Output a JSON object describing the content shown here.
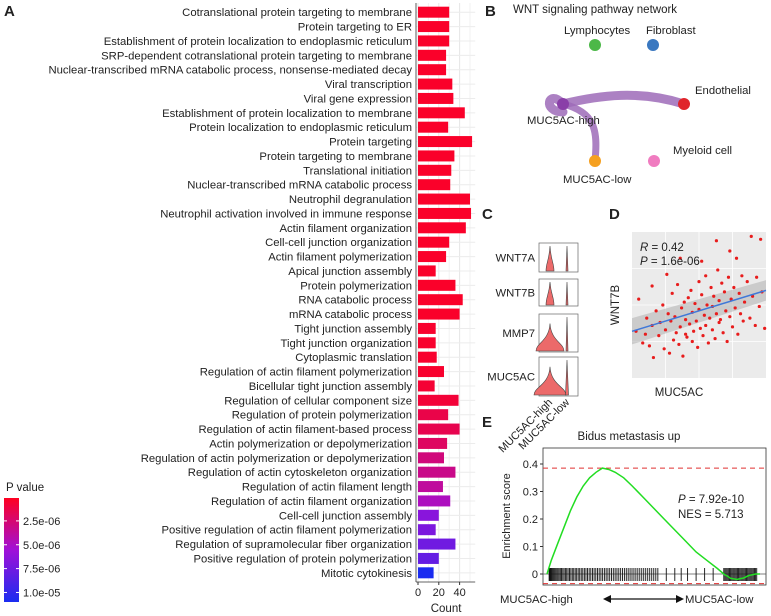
{
  "panels": {
    "a": {
      "letter": "A",
      "legend_title": "P value",
      "legend_ticks": [
        "2.5e-06",
        "5.0e-06",
        "7.5e-06",
        "1.0e-05"
      ],
      "legend_tick_values": [
        2.5e-06,
        5e-06,
        7.5e-06,
        1e-05
      ],
      "legend_range": [
        1e-07,
        1.1e-05
      ],
      "colors": {
        "low": "#ff0020",
        "mid": "#a010d8",
        "high": "#1a2cf0"
      }
    },
    "b": {
      "letter": "B",
      "title": "WNT signaling pathway network",
      "nodes": [
        {
          "label": "Lymphocytes",
          "color": "#4cb848"
        },
        {
          "label": "Fibroblast",
          "color": "#3a78c0"
        },
        {
          "label": "Endothelial",
          "color": "#e0252b"
        },
        {
          "label": "MUC5AC-high",
          "color": "#8a3fa8"
        },
        {
          "label": "Myeloid cell",
          "color": "#f07cc0"
        },
        {
          "label": "MUC5AC-low",
          "color": "#f5a020"
        }
      ],
      "edge_color": "#9d6bb8"
    },
    "c": {
      "letter": "C",
      "genes": [
        "WNT7A",
        "WNT7B",
        "MMP7",
        "MUC5AC"
      ],
      "groups": [
        "MUC5AC-high",
        "MUC5AC-low"
      ],
      "violin_color": "#ec6a6a"
    },
    "d": {
      "letter": "D",
      "r_label": "R",
      "r_value": "= 0.42",
      "p_label": "P",
      "p_value": "= 1.6e-06",
      "xlabel": "MUC5AC",
      "ylabel": "WNT7B",
      "point_color": "#e81c1c",
      "line_color": "#3f78d8"
    },
    "e": {
      "letter": "E",
      "title": "Bidus metastasis up",
      "ylabel": "Enrichment score",
      "y_ticks": [
        "0.4",
        "0.3",
        "0.2",
        "0.1",
        "0"
      ],
      "p_label": "P",
      "p_value": "= 7.92e-10",
      "nes": "NES = 5.713",
      "left_label": "MUC5AC-high",
      "right_label": "MUC5AC-low",
      "curve_color": "#22dd22"
    }
  },
  "chart_data": [
    {
      "type": "bar",
      "orientation": "horizontal",
      "xlabel": "Count",
      "xlim": [
        0,
        55
      ],
      "x_ticks": [
        0,
        20,
        40
      ],
      "color_by": "P value",
      "categories": [
        "Cotranslational protein targeting to membrane",
        "Protein targeting to ER",
        "Establishment of protein localization to endoplasmic reticulum",
        "SRP-dependent cotranslational protein targeting to membrane",
        "Nuclear-transcribed mRNA catabolic process, nonsense-mediated decay",
        "Viral transcription",
        "Viral gene expression",
        "Establishment of protein localization to membrane",
        "Protein localization to endoplasmic reticulum",
        "Protein targeting",
        "Protein targeting to membrane",
        "Translational initiation",
        "Nuclear-transcribed mRNA catabolic process",
        "Neutrophil degranulation",
        "Neutrophil activation involved in immune response",
        "Actin filament organization",
        "Cell-cell junction organization",
        "Actin filament polymerization",
        "Apical junction assembly",
        "Protein polymerization",
        "RNA catabolic process",
        "mRNA catabolic process",
        "Tight junction assembly",
        "Tight junction organization",
        "Cytoplasmic translation",
        "Regulation of actin filament polymerization",
        "Bicellular tight junction assembly",
        "Regulation of cellular component size",
        "Regulation of protein polymerization",
        "Regulation of actin filament-based process",
        "Actin polymerization or depolymerization",
        "Regulation of actin polymerization or depolymerization",
        "Regulation of actin cytoskeleton organization",
        "Regulation of actin filament length",
        "Regulation of actin filament organization",
        "Cell-cell junction assembly",
        "Positive regulation of actin filament polymerization",
        "Regulation of supramolecular fiber organization",
        "Positive regulation of protein polymerization",
        "Mitotic cytokinesis"
      ],
      "values": [
        30,
        30,
        30,
        27,
        27,
        33,
        34,
        45,
        29,
        52,
        35,
        32,
        31,
        50,
        51,
        46,
        30,
        27,
        17,
        36,
        43,
        40,
        17,
        17,
        18,
        25,
        16,
        39,
        29,
        40,
        28,
        25,
        36,
        24,
        31,
        20,
        17,
        36,
        20,
        15
      ],
      "p_values": [
        4e-07,
        4e-07,
        4e-07,
        4e-07,
        4e-07,
        4e-07,
        4e-07,
        4e-07,
        4e-07,
        4e-07,
        4e-07,
        4e-07,
        4e-07,
        4e-07,
        4e-07,
        4e-07,
        4e-07,
        4e-07,
        4e-07,
        4e-07,
        4e-07,
        4e-07,
        5e-07,
        5e-07,
        5e-07,
        5e-07,
        7e-07,
        8e-07,
        1.3e-06,
        1.5e-06,
        2e-06,
        2.8e-06,
        3.2e-06,
        3.8e-06,
        4.8e-06,
        6.5e-06,
        7e-06,
        7.5e-06,
        8e-06,
        1.1e-05
      ]
    },
    {
      "type": "network",
      "edges": [
        {
          "from": "MUC5AC-high",
          "to": "Endothelial"
        },
        {
          "from": "MUC5AC-high",
          "to": "MUC5AC-low"
        },
        {
          "from": "MUC5AC-high",
          "to": "MUC5AC-high"
        }
      ]
    },
    {
      "type": "violin",
      "genes": [
        "WNT7A",
        "WNT7B",
        "MMP7",
        "MUC5AC"
      ],
      "groups": [
        "MUC5AC-high",
        "MUC5AC-low"
      ]
    },
    {
      "type": "scatter",
      "xlabel": "MUC5AC",
      "ylabel": "WNT7B",
      "xlim": [
        0,
        10
      ],
      "ylim": [
        0,
        10
      ],
      "points": [
        [
          0.3,
          3.2
        ],
        [
          0.5,
          5.4
        ],
        [
          0.8,
          2.4
        ],
        [
          1.0,
          3.0
        ],
        [
          1.1,
          4.1
        ],
        [
          1.3,
          2.2
        ],
        [
          1.5,
          3.6
        ],
        [
          1.6,
          1.4
        ],
        [
          1.8,
          4.6
        ],
        [
          2.0,
          2.9
        ],
        [
          2.1,
          3.8
        ],
        [
          2.3,
          5.0
        ],
        [
          2.4,
          2.0
        ],
        [
          2.5,
          3.3
        ],
        [
          2.7,
          4.4
        ],
        [
          2.8,
          1.7
        ],
        [
          2.9,
          3.9
        ],
        [
          3.0,
          5.8
        ],
        [
          3.1,
          2.6
        ],
        [
          3.2,
          4.2
        ],
        [
          3.3,
          3.1
        ],
        [
          3.4,
          6.4
        ],
        [
          3.5,
          2.3
        ],
        [
          3.6,
          3.5
        ],
        [
          3.7,
          4.8
        ],
        [
          3.8,
          1.5
        ],
        [
          3.9,
          5.2
        ],
        [
          4.0,
          3.0
        ],
        [
          4.0,
          4.0
        ],
        [
          4.1,
          2.8
        ],
        [
          4.2,
          5.5
        ],
        [
          4.3,
          3.7
        ],
        [
          4.4,
          6.0
        ],
        [
          4.5,
          2.5
        ],
        [
          4.5,
          4.5
        ],
        [
          4.6,
          3.2
        ],
        [
          4.7,
          5.1
        ],
        [
          4.8,
          3.9
        ],
        [
          4.9,
          2.1
        ],
        [
          5.0,
          4.7
        ],
        [
          5.0,
          6.6
        ],
        [
          5.1,
          3.4
        ],
        [
          5.2,
          5.7
        ],
        [
          5.3,
          2.9
        ],
        [
          5.4,
          4.3
        ],
        [
          5.5,
          7.0
        ],
        [
          5.5,
          3.6
        ],
        [
          5.6,
          5.0
        ],
        [
          5.7,
          2.4
        ],
        [
          5.8,
          4.1
        ],
        [
          5.9,
          6.2
        ],
        [
          6.0,
          3.3
        ],
        [
          6.0,
          4.9
        ],
        [
          6.1,
          5.6
        ],
        [
          6.2,
          2.7
        ],
        [
          6.3,
          4.4
        ],
        [
          6.4,
          7.4
        ],
        [
          6.5,
          3.8
        ],
        [
          6.5,
          5.3
        ],
        [
          6.6,
          4.0
        ],
        [
          6.7,
          6.5
        ],
        [
          6.8,
          3.1
        ],
        [
          6.9,
          5.9
        ],
        [
          7.0,
          4.6
        ],
        [
          7.1,
          2.5
        ],
        [
          7.2,
          6.9
        ],
        [
          7.3,
          4.2
        ],
        [
          7.4,
          5.4
        ],
        [
          7.5,
          3.5
        ],
        [
          7.6,
          6.2
        ],
        [
          7.7,
          4.8
        ],
        [
          7.8,
          8.2
        ],
        [
          7.9,
          3.0
        ],
        [
          8.0,
          5.8
        ],
        [
          8.1,
          4.4
        ],
        [
          8.2,
          7.0
        ],
        [
          8.3,
          3.9
        ],
        [
          8.4,
          5.2
        ],
        [
          8.6,
          6.6
        ],
        [
          8.8,
          4.1
        ],
        [
          9.0,
          5.6
        ],
        [
          9.2,
          3.6
        ],
        [
          9.3,
          6.9
        ],
        [
          9.5,
          4.9
        ],
        [
          9.7,
          5.9
        ],
        [
          9.9,
          3.4
        ],
        [
          8.9,
          9.7
        ],
        [
          6.3,
          9.4
        ],
        [
          9.6,
          9.5
        ],
        [
          3.6,
          8.2
        ],
        [
          2.6,
          7.1
        ],
        [
          1.5,
          6.3
        ],
        [
          5.2,
          8.0
        ],
        [
          7.3,
          8.7
        ]
      ],
      "fit": [
        [
          0,
          3.2
        ],
        [
          10,
          6.0
        ]
      ]
    },
    {
      "type": "line",
      "title": "Bidus metastasis up",
      "ylabel": "Enrichment score",
      "ylim": [
        -0.04,
        0.42
      ],
      "peak_es": 0.385,
      "x": [
        0,
        0.02,
        0.05,
        0.08,
        0.11,
        0.14,
        0.17,
        0.2,
        0.23,
        0.26,
        0.29,
        0.32,
        0.36,
        0.4,
        0.45,
        0.5,
        0.55,
        0.6,
        0.65,
        0.7,
        0.75,
        0.8,
        0.83,
        0.86,
        0.89,
        0.92,
        0.95,
        0.98,
        1.0
      ],
      "y": [
        0,
        0.05,
        0.11,
        0.17,
        0.23,
        0.28,
        0.32,
        0.35,
        0.37,
        0.385,
        0.38,
        0.37,
        0.35,
        0.32,
        0.28,
        0.24,
        0.2,
        0.16,
        0.12,
        0.08,
        0.05,
        0.02,
        0.0,
        -0.015,
        -0.02,
        -0.015,
        -0.005,
        0.0,
        0.0
      ]
    }
  ]
}
